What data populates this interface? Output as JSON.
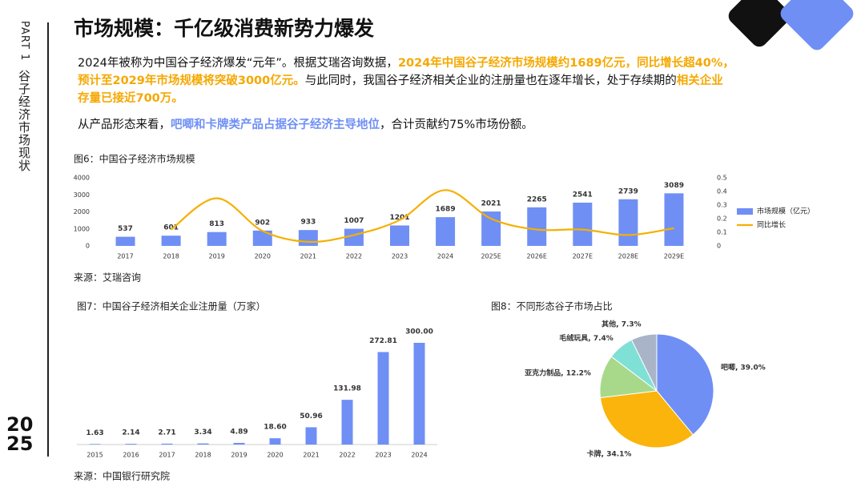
{
  "sidebar": {
    "part": "PART 1",
    "section": "谷子经济市场现状",
    "year_top": "20",
    "year_bottom": "25"
  },
  "title": "市场规模：千亿级消费新势力爆发",
  "paragraphs": [
    [
      {
        "text": "2024年被称为中国谷子经济爆发“元年”。根据艾瑞咨询数据，"
      },
      {
        "text": "2024年中国谷子经济市场规模约1689亿元，同比增长超40%，预计至2029年市场规模将突破3000亿元。",
        "color": "#f5a800"
      },
      {
        "text": "与此同时，我国谷子经济相关企业的注册量也在逐年增长，处于存续期的"
      },
      {
        "text": "相关企业存量已接近700万。",
        "color": "#f5a800"
      }
    ],
    [
      {
        "text": "从产品形态来看，"
      },
      {
        "text": "吧唧和卡牌类产品占据谷子经济主导地位",
        "color": "#6f8ff5"
      },
      {
        "text": "，合计贡献约75%市场份额。"
      }
    ]
  ],
  "chart_data": [
    {
      "type": "bar_line",
      "title": "图6：中国谷子经济市场规模",
      "source": "来源：艾瑞咨询",
      "categories": [
        "2017",
        "2018",
        "2019",
        "2020",
        "2021",
        "2022",
        "2023",
        "2024",
        "2025E",
        "2026E",
        "2027E",
        "2028E",
        "2029E"
      ],
      "series": [
        {
          "name": "市场规模（亿元）",
          "color": "#6f8ff5",
          "type": "bar",
          "values": [
            537,
            601,
            813,
            902,
            933,
            1007,
            1201,
            1689,
            2021,
            2265,
            2541,
            2739,
            3089
          ]
        },
        {
          "name": "同比增长",
          "color": "#f5b000",
          "type": "line",
          "axis": "y2",
          "values": [
            null,
            0.12,
            0.35,
            0.11,
            0.03,
            0.08,
            0.19,
            0.41,
            0.2,
            0.12,
            0.12,
            0.08,
            0.13
          ]
        }
      ],
      "ylim": [
        0,
        4000
      ],
      "yticks": [
        0,
        1000,
        2000,
        3000,
        4000
      ],
      "y2lim": [
        0,
        0.5
      ],
      "y2ticks": [
        0,
        0.1,
        0.2,
        0.3,
        0.4,
        0.5
      ],
      "legend": "right"
    },
    {
      "type": "bar",
      "title": "图7：中国谷子经济相关企业注册量（万家）",
      "source": "来源：中国银行研究院",
      "categories": [
        "2015",
        "2016",
        "2017",
        "2018",
        "2019",
        "2020",
        "2021",
        "2022",
        "2023",
        "2024"
      ],
      "values": [
        1.63,
        2.14,
        2.71,
        3.34,
        4.89,
        18.6,
        50.96,
        131.98,
        272.81,
        300
      ],
      "value_labels": [
        "1.63",
        "2.14",
        "2.71",
        "3.34",
        "4.89",
        "18.60",
        "50.96",
        "131.98",
        "272.81",
        "300.00"
      ],
      "color": "#6f8ff5"
    },
    {
      "type": "pie",
      "title": "图8：不同形态谷子市场占比",
      "values": [
        39.0,
        34.1,
        12.2,
        7.4,
        7.3
      ],
      "value_labels": [
        "吧唧, 39.0%",
        "卡牌, 34.1%",
        "亚克力制品, 12.2%",
        "毛绒玩具, 7.4%",
        "其他, 7.3%"
      ],
      "colors": [
        "#6f8ff5",
        "#fbb40c",
        "#a8d98a",
        "#7fe0d6",
        "#a9b4c8"
      ]
    }
  ]
}
